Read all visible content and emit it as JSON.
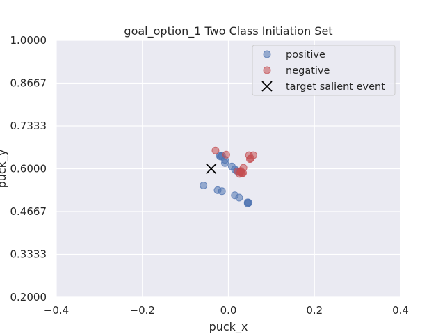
{
  "chart_data": {
    "type": "scatter",
    "title": "goal_option_1 Two Class Initiation Set",
    "xlabel": "puck_x",
    "ylabel": "puck_y",
    "xlim": [
      -0.4,
      0.4
    ],
    "ylim": [
      0.2,
      1.0
    ],
    "x_ticks": [
      "−0.4",
      "−0.2",
      "0.0",
      "0.2",
      "0.4"
    ],
    "y_ticks": [
      "0.2000",
      "0.3333",
      "0.4667",
      "0.6000",
      "0.7333",
      "0.8667",
      "1.0000"
    ],
    "grid": true,
    "legend_position": "upper right",
    "series": [
      {
        "name": "positive",
        "color": "#4c72b0",
        "marker": "circle",
        "points": [
          [
            -0.02,
            0.64
          ],
          [
            -0.015,
            0.64
          ],
          [
            -0.018,
            0.638
          ],
          [
            -0.008,
            0.628
          ],
          [
            -0.008,
            0.618
          ],
          [
            0.008,
            0.607
          ],
          [
            0.015,
            0.598
          ],
          [
            0.02,
            0.593
          ],
          [
            0.025,
            0.59
          ],
          [
            -0.058,
            0.548
          ],
          [
            -0.025,
            0.533
          ],
          [
            -0.015,
            0.53
          ],
          [
            0.015,
            0.517
          ],
          [
            0.025,
            0.51
          ],
          [
            0.045,
            0.495
          ],
          [
            0.045,
            0.492
          ],
          [
            0.047,
            0.494
          ]
        ]
      },
      {
        "name": "negative",
        "color": "#c44e52",
        "marker": "circle",
        "points": [
          [
            -0.03,
            0.657
          ],
          [
            -0.005,
            0.644
          ],
          [
            0.048,
            0.642
          ],
          [
            0.058,
            0.642
          ],
          [
            0.05,
            0.63
          ],
          [
            0.052,
            0.632
          ],
          [
            0.035,
            0.603
          ],
          [
            0.022,
            0.592
          ],
          [
            0.028,
            0.59
          ],
          [
            0.03,
            0.588
          ],
          [
            0.032,
            0.585
          ],
          [
            0.026,
            0.584
          ],
          [
            0.034,
            0.587
          ],
          [
            0.029,
            0.593
          ]
        ]
      },
      {
        "name": "target salient event",
        "color": "#000000",
        "marker": "x",
        "points": [
          [
            -0.04,
            0.6
          ]
        ]
      }
    ]
  }
}
